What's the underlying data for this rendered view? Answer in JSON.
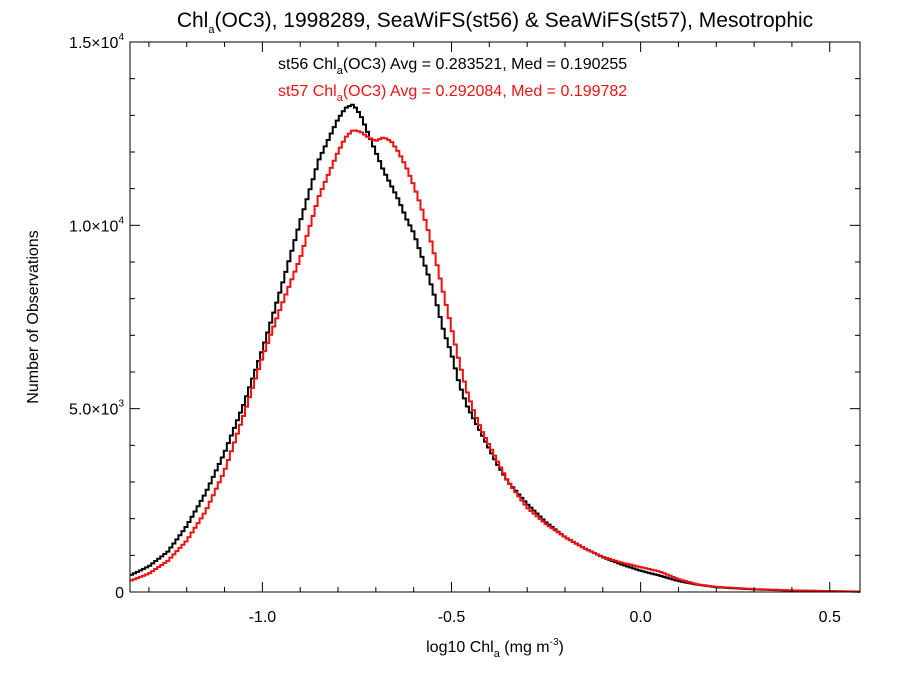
{
  "chart_data": {
    "type": "line",
    "title": {
      "prefix": "Chl",
      "sub": "a",
      "suffix": "(OC3), 1998289, SeaWiFS(st56) & SeaWiFS(st57), Mesotrophic"
    },
    "xlabel": {
      "prefix": "log10 Chl",
      "sub": "a",
      "unit_pre": " (mg m",
      "unit_sup": "-3",
      "unit_post": ")"
    },
    "ylabel": "Number of Observations",
    "xlim": [
      -1.35,
      0.58
    ],
    "ylim": [
      0,
      15000
    ],
    "x_ticks": [
      {
        "value": -1.0,
        "label": "-1.0"
      },
      {
        "value": -0.5,
        "label": "-0.5"
      },
      {
        "value": 0.0,
        "label": "0.0"
      },
      {
        "value": 0.5,
        "label": "0.5"
      }
    ],
    "y_ticks": [
      {
        "value": 0,
        "mantissa": "0",
        "exp": ""
      },
      {
        "value": 5000,
        "mantissa": "5.0×10",
        "exp": "3"
      },
      {
        "value": 10000,
        "mantissa": "1.0×10",
        "exp": "4"
      },
      {
        "value": 15000,
        "mantissa": "1.5×10",
        "exp": "4"
      }
    ],
    "annotations": [
      {
        "series": "st56",
        "color": "#000000",
        "prefix": "st56 Chl",
        "sub": "a",
        "suffix": "(OC3) Avg = 0.283521, Med = 0.190255"
      },
      {
        "series": "st57",
        "color": "#ee1111",
        "prefix": "st57 Chl",
        "sub": "a",
        "suffix": "(OC3) Avg = 0.292084, Med = 0.199782"
      }
    ],
    "grid": false,
    "step": true,
    "series": [
      {
        "name": "st56",
        "color": "#000000",
        "points": [
          [
            -1.35,
            450
          ],
          [
            -1.3,
            700
          ],
          [
            -1.25,
            1100
          ],
          [
            -1.2,
            1800
          ],
          [
            -1.15,
            2700
          ],
          [
            -1.1,
            3800
          ],
          [
            -1.05,
            5100
          ],
          [
            -1.0,
            6600
          ],
          [
            -0.95,
            8300
          ],
          [
            -0.9,
            10100
          ],
          [
            -0.85,
            11800
          ],
          [
            -0.8,
            12900
          ],
          [
            -0.78,
            13200
          ],
          [
            -0.76,
            13300
          ],
          [
            -0.74,
            13000
          ],
          [
            -0.72,
            12500
          ],
          [
            -0.7,
            12000
          ],
          [
            -0.68,
            11500
          ],
          [
            -0.66,
            11100
          ],
          [
            -0.64,
            10700
          ],
          [
            -0.62,
            10200
          ],
          [
            -0.6,
            9800
          ],
          [
            -0.58,
            9200
          ],
          [
            -0.56,
            8600
          ],
          [
            -0.54,
            7900
          ],
          [
            -0.52,
            7100
          ],
          [
            -0.5,
            6500
          ],
          [
            -0.48,
            5700
          ],
          [
            -0.46,
            5100
          ],
          [
            -0.44,
            4700
          ],
          [
            -0.42,
            4300
          ],
          [
            -0.4,
            3900
          ],
          [
            -0.38,
            3500
          ],
          [
            -0.35,
            3000
          ],
          [
            -0.3,
            2400
          ],
          [
            -0.25,
            1900
          ],
          [
            -0.2,
            1500
          ],
          [
            -0.15,
            1200
          ],
          [
            -0.1,
            950
          ],
          [
            -0.05,
            750
          ],
          [
            0.0,
            580
          ],
          [
            0.05,
            450
          ],
          [
            0.1,
            300
          ],
          [
            0.15,
            200
          ],
          [
            0.2,
            130
          ],
          [
            0.3,
            70
          ],
          [
            0.4,
            40
          ],
          [
            0.5,
            20
          ],
          [
            0.58,
            10
          ]
        ]
      },
      {
        "name": "st57",
        "color": "#ee1111",
        "points": [
          [
            -1.35,
            300
          ],
          [
            -1.3,
            500
          ],
          [
            -1.25,
            850
          ],
          [
            -1.2,
            1400
          ],
          [
            -1.15,
            2200
          ],
          [
            -1.1,
            3300
          ],
          [
            -1.05,
            4800
          ],
          [
            -1.0,
            6400
          ],
          [
            -0.95,
            7800
          ],
          [
            -0.9,
            9100
          ],
          [
            -0.85,
            10800
          ],
          [
            -0.8,
            12000
          ],
          [
            -0.78,
            12400
          ],
          [
            -0.76,
            12600
          ],
          [
            -0.74,
            12550
          ],
          [
            -0.72,
            12400
          ],
          [
            -0.7,
            12300
          ],
          [
            -0.68,
            12400
          ],
          [
            -0.66,
            12300
          ],
          [
            -0.64,
            12000
          ],
          [
            -0.62,
            11600
          ],
          [
            -0.6,
            11100
          ],
          [
            -0.58,
            10500
          ],
          [
            -0.56,
            9800
          ],
          [
            -0.54,
            9000
          ],
          [
            -0.52,
            8100
          ],
          [
            -0.5,
            7200
          ],
          [
            -0.48,
            6300
          ],
          [
            -0.46,
            5500
          ],
          [
            -0.44,
            4900
          ],
          [
            -0.42,
            4400
          ],
          [
            -0.4,
            4000
          ],
          [
            -0.38,
            3600
          ],
          [
            -0.35,
            3000
          ],
          [
            -0.3,
            2300
          ],
          [
            -0.25,
            1850
          ],
          [
            -0.2,
            1500
          ],
          [
            -0.15,
            1200
          ],
          [
            -0.1,
            960
          ],
          [
            -0.05,
            800
          ],
          [
            0.0,
            680
          ],
          [
            0.05,
            560
          ],
          [
            0.1,
            350
          ],
          [
            0.15,
            210
          ],
          [
            0.2,
            140
          ],
          [
            0.3,
            80
          ],
          [
            0.4,
            45
          ],
          [
            0.5,
            25
          ],
          [
            0.58,
            12
          ]
        ]
      }
    ]
  }
}
